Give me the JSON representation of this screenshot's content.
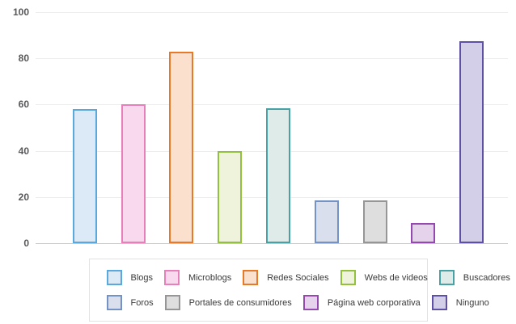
{
  "chart_data": {
    "type": "bar",
    "title": "",
    "xlabel": "",
    "ylabel": "",
    "categories": [
      "Blogs",
      "Microblogs",
      "Redes Sociales",
      "Webs de videos",
      "Buscadores",
      "Foros",
      "Portales de consumidores",
      "Página web corporativa",
      "Ninguno"
    ],
    "values": [
      58,
      60,
      83,
      40,
      58.5,
      18.5,
      18.5,
      8.7,
      87.5
    ],
    "bar_styles": [
      {
        "fill": "#dceaf8",
        "border": "#5aa9dc"
      },
      {
        "fill": "#f8d9ed",
        "border": "#e67fba"
      },
      {
        "fill": "#fbe1cd",
        "border": "#e87929"
      },
      {
        "fill": "#eff3db",
        "border": "#93c13d"
      },
      {
        "fill": "#dfebe8",
        "border": "#47a2a6"
      },
      {
        "fill": "#dadfee",
        "border": "#7492c4"
      },
      {
        "fill": "#dedede",
        "border": "#969696"
      },
      {
        "fill": "#e5d2eb",
        "border": "#9349ae"
      },
      {
        "fill": "#d3cfe8",
        "border": "#5e51a5"
      }
    ],
    "ylim": [
      0,
      100
    ],
    "yticks": [
      0,
      20,
      40,
      60,
      80,
      100
    ],
    "grid": "horizontal",
    "legend_position": "bottom",
    "legend_rows": [
      5,
      4
    ]
  },
  "colors": {
    "background": "#ffffff",
    "gridline": "#ededed",
    "baseline": "#c9c9c9",
    "tick_label": "#58585a",
    "legend_border": "#e2e2e2",
    "legend_text": "#3a3a3a"
  }
}
